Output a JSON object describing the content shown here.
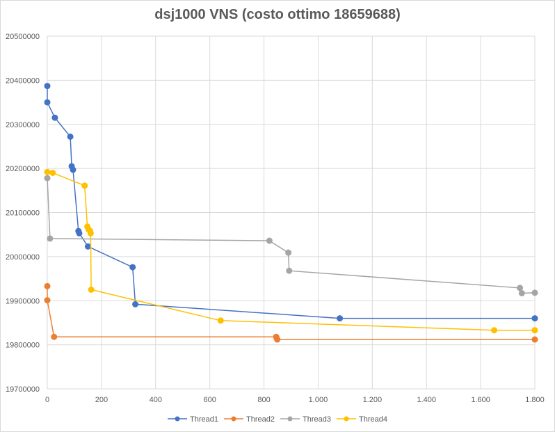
{
  "chart_data": {
    "type": "line",
    "title": "dsj1000 VNS (costo ottimo 18659688)",
    "xlabel": "",
    "ylabel": "",
    "xlim": [
      0,
      1800
    ],
    "ylim": [
      19700000,
      20500000
    ],
    "x_ticks": [
      0,
      200,
      400,
      600,
      800,
      1000,
      1200,
      1400,
      1600,
      1800
    ],
    "x_tick_labels": [
      "0",
      "200",
      "400",
      "600",
      "800",
      "1.000",
      "1.200",
      "1.400",
      "1.600",
      "1.800"
    ],
    "y_ticks": [
      19700000,
      19800000,
      19900000,
      20000000,
      20100000,
      20200000,
      20300000,
      20400000,
      20500000
    ],
    "y_tick_labels": [
      "19700000",
      "19800000",
      "19900000",
      "20000000",
      "20100000",
      "20200000",
      "20300000",
      "20400000",
      "20500000"
    ],
    "grid": "vertical-and-horizontal",
    "legend_position": "bottom",
    "series": [
      {
        "name": "Thread1",
        "color": "#4472C4",
        "points": [
          [
            0,
            20387000
          ],
          [
            0,
            20350000
          ],
          [
            28,
            20315000
          ],
          [
            85,
            20272000
          ],
          [
            90,
            20205000
          ],
          [
            95,
            20197000
          ],
          [
            115,
            20058000
          ],
          [
            118,
            20053000
          ],
          [
            150,
            20023000
          ],
          [
            315,
            19976000
          ],
          [
            325,
            19892000
          ],
          [
            1080,
            19860000
          ],
          [
            1800,
            19860000
          ]
        ]
      },
      {
        "name": "Thread2",
        "color": "#ED7D31",
        "points": [
          [
            0,
            19933000
          ],
          [
            0,
            19901000
          ],
          [
            25,
            19818000
          ],
          [
            845,
            19818000
          ],
          [
            847,
            19815000
          ],
          [
            849,
            19812000
          ],
          [
            1800,
            19812000
          ]
        ]
      },
      {
        "name": "Thread3",
        "color": "#A5A5A5",
        "points": [
          [
            0,
            20178000
          ],
          [
            10,
            20041000
          ],
          [
            820,
            20036000
          ],
          [
            890,
            20009000
          ],
          [
            893,
            19968000
          ],
          [
            1745,
            19929000
          ],
          [
            1752,
            19917000
          ],
          [
            1800,
            19918000
          ]
        ]
      },
      {
        "name": "Thread4",
        "color": "#FFC000",
        "points": [
          [
            0,
            20192000
          ],
          [
            20,
            20190000
          ],
          [
            138,
            20161000
          ],
          [
            148,
            20068000
          ],
          [
            152,
            20062000
          ],
          [
            158,
            20058000
          ],
          [
            160,
            20053000
          ],
          [
            162,
            19925000
          ],
          [
            640,
            19855000
          ],
          [
            1650,
            19833000
          ],
          [
            1800,
            19833000
          ]
        ]
      }
    ]
  }
}
